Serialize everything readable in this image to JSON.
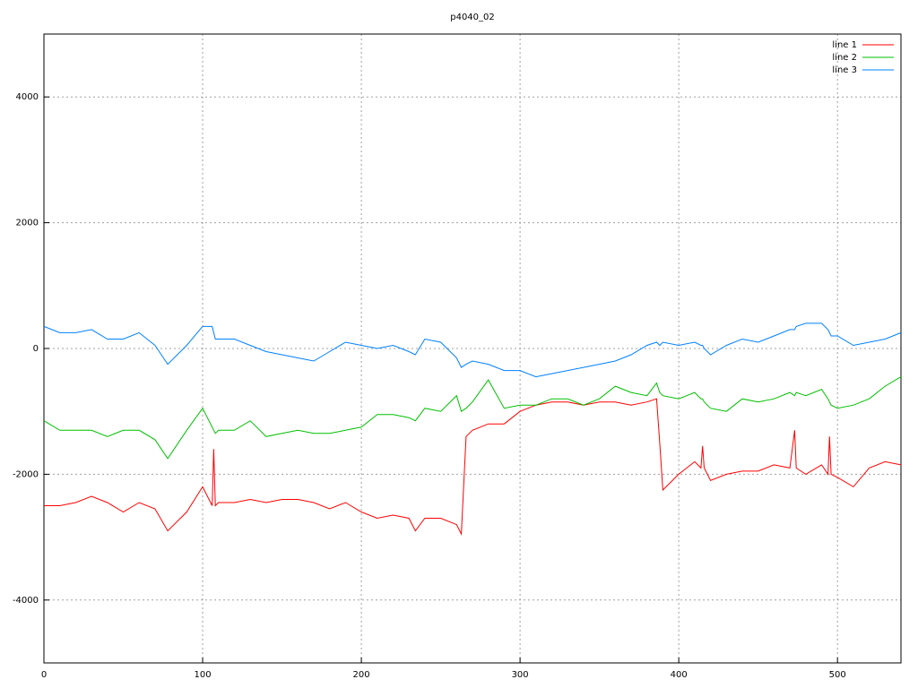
{
  "chart_data": {
    "type": "line",
    "title": "p4040_02",
    "x": [
      0,
      10,
      20,
      30,
      40,
      50,
      60,
      70,
      78,
      90,
      100,
      106,
      107,
      108,
      110,
      120,
      130,
      140,
      150,
      160,
      170,
      180,
      190,
      200,
      210,
      220,
      230,
      234,
      240,
      250,
      260,
      263,
      266,
      270,
      280,
      290,
      300,
      310,
      320,
      330,
      340,
      350,
      360,
      370,
      380,
      386,
      388,
      390,
      400,
      410,
      414,
      415,
      416,
      420,
      430,
      440,
      450,
      460,
      470,
      473,
      474,
      480,
      490,
      494,
      495,
      496,
      500,
      510,
      520,
      530,
      540
    ],
    "series": [
      {
        "name": "line 1",
        "color": "#ff0000",
        "values": [
          -2500,
          -2500,
          -2450,
          -2350,
          -2450,
          -2600,
          -2450,
          -2550,
          -2900,
          -2600,
          -2200,
          -2500,
          -1600,
          -2500,
          -2450,
          -2450,
          -2400,
          -2450,
          -2400,
          -2400,
          -2450,
          -2550,
          -2450,
          -2600,
          -2700,
          -2650,
          -2700,
          -2900,
          -2700,
          -2700,
          -2800,
          -2950,
          -1400,
          -1300,
          -1200,
          -1200,
          -1000,
          -900,
          -850,
          -850,
          -900,
          -850,
          -850,
          -900,
          -850,
          -800,
          -1500,
          -2250,
          -2000,
          -1800,
          -1900,
          -1550,
          -1900,
          -2100,
          -2000,
          -1950,
          -1950,
          -1850,
          -1900,
          -1300,
          -1900,
          -2000,
          -1850,
          -2000,
          -1400,
          -2000,
          -2050,
          -2200,
          -1900,
          -1800,
          -1850
        ]
      },
      {
        "name": "line 2",
        "color": "#00c000",
        "values": [
          -1150,
          -1300,
          -1300,
          -1300,
          -1400,
          -1300,
          -1300,
          -1450,
          -1750,
          -1300,
          -950,
          -1250,
          -1300,
          -1350,
          -1300,
          -1300,
          -1150,
          -1400,
          -1350,
          -1300,
          -1350,
          -1350,
          -1300,
          -1250,
          -1050,
          -1050,
          -1100,
          -1150,
          -950,
          -1000,
          -750,
          -1000,
          -950,
          -850,
          -500,
          -950,
          -900,
          -900,
          -800,
          -800,
          -900,
          -800,
          -600,
          -700,
          -750,
          -550,
          -700,
          -750,
          -800,
          -700,
          -800,
          -800,
          -850,
          -950,
          -1000,
          -800,
          -850,
          -800,
          -700,
          -750,
          -700,
          -750,
          -650,
          -800,
          -850,
          -900,
          -950,
          -900,
          -800,
          -600,
          -450
        ]
      },
      {
        "name": "line 3",
        "color": "#0080ff",
        "values": [
          350,
          250,
          250,
          300,
          150,
          150,
          250,
          50,
          -250,
          50,
          350,
          350,
          250,
          150,
          150,
          150,
          50,
          -50,
          -100,
          -150,
          -200,
          -50,
          100,
          50,
          0,
          50,
          -50,
          -100,
          150,
          100,
          -150,
          -300,
          -250,
          -200,
          -250,
          -350,
          -350,
          -450,
          -400,
          -350,
          -300,
          -250,
          -200,
          -100,
          50,
          100,
          50,
          100,
          50,
          100,
          50,
          50,
          0,
          -100,
          50,
          150,
          100,
          200,
          300,
          300,
          350,
          400,
          400,
          300,
          250,
          200,
          200,
          50,
          100,
          150,
          250
        ]
      }
    ],
    "xlim": [
      0,
      540
    ],
    "ylim": [
      -5000,
      5000
    ],
    "xticks": [
      0,
      100,
      200,
      300,
      400,
      500
    ],
    "yticks": [
      -4000,
      -2000,
      0,
      2000,
      4000
    ],
    "grid": true,
    "legend": "top-right"
  }
}
